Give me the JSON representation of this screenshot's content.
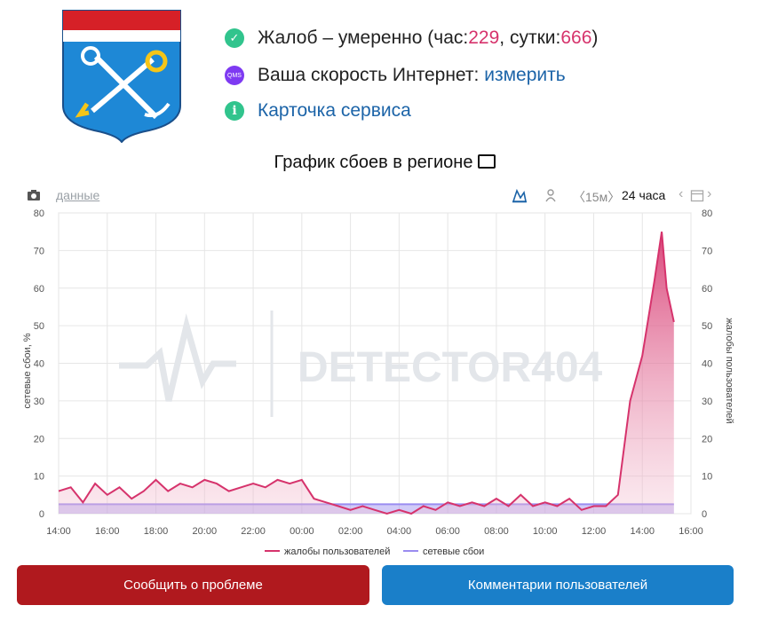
{
  "status": {
    "complaints": {
      "prefix": "Жалоб – умеренно (час: ",
      "hour": "229",
      "sep": ", сутки: ",
      "day": "666",
      "suffix": ")"
    },
    "speed": {
      "label": "Ваша скорость Интернет: ",
      "link": "измерить"
    },
    "card": {
      "link": "Карточка сервиса"
    }
  },
  "icons": {
    "check": "check-icon",
    "qms": "QMS",
    "info": "i"
  },
  "colors": {
    "complaints": "#d6336c",
    "outages": "#9a8cf0",
    "red_button": "#b0191e",
    "blue_button": "#1a7fc9"
  },
  "toolbar": {
    "data_link": "данные",
    "range_15m": "15м",
    "range_24h": "24 часа"
  },
  "watermark": "DETECTOR404",
  "buttons": {
    "report": "Сообщить о проблеме",
    "comments": "Комментарии пользователей"
  },
  "chart_data": {
    "type": "area",
    "title": "График сбоев в регионе",
    "ylabel_left": "сетевые сбои, %",
    "ylabel_right": "жалобы пользователей",
    "ylim": [
      0,
      80
    ],
    "yticks": [
      0,
      10,
      20,
      30,
      40,
      50,
      60,
      70,
      80
    ],
    "xlim": [
      14,
      40
    ],
    "xticks": [
      "14:00",
      "16:00",
      "18:00",
      "20:00",
      "22:00",
      "00:00",
      "02:00",
      "04:00",
      "06:00",
      "08:00",
      "10:00",
      "12:00",
      "14:00",
      "16:00"
    ],
    "x_hours": [
      14,
      14.5,
      15,
      15.5,
      16,
      16.5,
      17,
      17.5,
      18,
      18.5,
      19,
      19.5,
      20,
      20.5,
      21,
      21.5,
      22,
      22.5,
      23,
      23.5,
      24,
      24.5,
      25,
      25.5,
      26,
      26.5,
      27,
      27.5,
      28,
      28.5,
      29,
      29.5,
      30,
      30.5,
      31,
      31.5,
      32,
      32.5,
      33,
      33.5,
      34,
      34.5,
      35,
      35.5,
      36,
      36.5,
      37,
      37.5,
      38,
      38.5,
      38.8,
      39,
      39.3
    ],
    "series": [
      {
        "name": "жалобы пользователей",
        "values": [
          6,
          7,
          3,
          8,
          5,
          7,
          4,
          6,
          9,
          6,
          8,
          7,
          9,
          8,
          6,
          7,
          8,
          7,
          9,
          8,
          9,
          4,
          3,
          2,
          1,
          2,
          1,
          0,
          1,
          0,
          2,
          1,
          3,
          2,
          3,
          2,
          4,
          2,
          5,
          2,
          3,
          2,
          4,
          1,
          2,
          2,
          5,
          30,
          42,
          62,
          75,
          60,
          51
        ]
      },
      {
        "name": "сетевые сбои",
        "values": [
          2.5,
          2.5,
          2.5,
          2.5,
          2.5,
          2.5,
          2.5,
          2.5,
          2.5,
          2.5,
          2.5,
          2.5,
          2.5,
          2.5,
          2.5,
          2.5,
          2.5,
          2.5,
          2.5,
          2.5,
          2.5,
          2.5,
          2.5,
          2.5,
          2.5,
          2.5,
          2.5,
          2.5,
          2.5,
          2.5,
          2.5,
          2.5,
          2.5,
          2.5,
          2.5,
          2.5,
          2.5,
          2.5,
          2.5,
          2.5,
          2.5,
          2.5,
          2.5,
          2.5,
          2.5,
          2.5,
          2.5,
          2.5,
          2.5,
          2.5,
          2.5,
          2.5,
          2.5
        ]
      }
    ],
    "legend_position": "bottom",
    "grid": true
  }
}
